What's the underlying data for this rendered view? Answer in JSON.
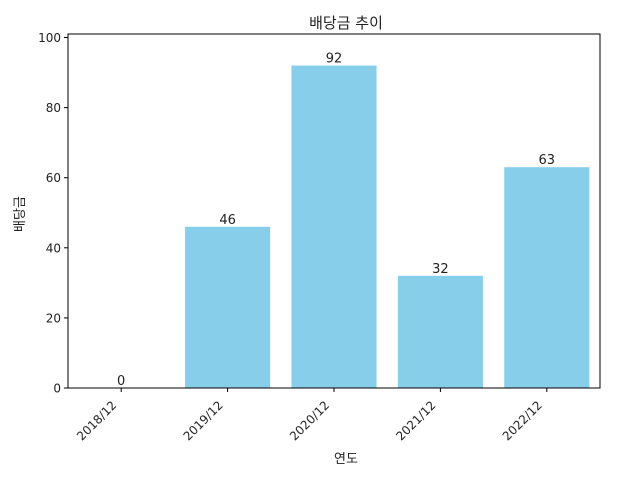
{
  "chart_data": {
    "type": "bar",
    "title": "배당금 추이",
    "xlabel": "연도",
    "ylabel": "배당금",
    "categories": [
      "2018/12",
      "2019/12",
      "2020/12",
      "2021/12",
      "2022/12"
    ],
    "values": [
      0,
      46,
      92,
      32,
      63
    ],
    "data_labels": [
      "0",
      "46",
      "92",
      "32",
      "63"
    ],
    "ylim": [
      0,
      101
    ],
    "yticks": [
      0,
      20,
      40,
      60,
      80,
      100
    ],
    "ytick_labels": [
      "0",
      "20",
      "40",
      "60",
      "80",
      "100"
    ],
    "xtick_rotation": 45,
    "bar_color": "#87ceeb",
    "grid": false,
    "legend": "none"
  }
}
